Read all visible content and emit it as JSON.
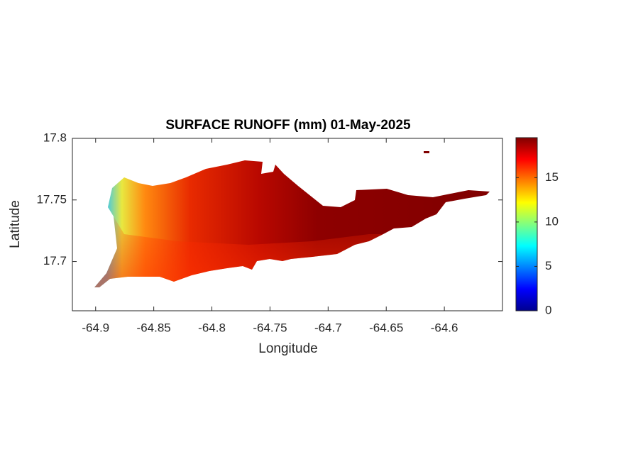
{
  "chart_data": {
    "type": "map",
    "title": "SURFACE RUNOFF (mm) 01-May-2025",
    "x_label": "Longitude",
    "y_label": "Latitude",
    "xlim": [
      -64.92,
      -64.55
    ],
    "xticks": [
      -64.9,
      -64.85,
      -64.8,
      -64.75,
      -64.7,
      -64.65,
      -64.6
    ],
    "ylim": [
      17.66,
      17.8
    ],
    "yticks": [
      17.7,
      17.75,
      17.8
    ],
    "colormap": "jet",
    "clim": [
      0,
      19.5
    ],
    "cticks": [
      0,
      5,
      10,
      15
    ]
  }
}
